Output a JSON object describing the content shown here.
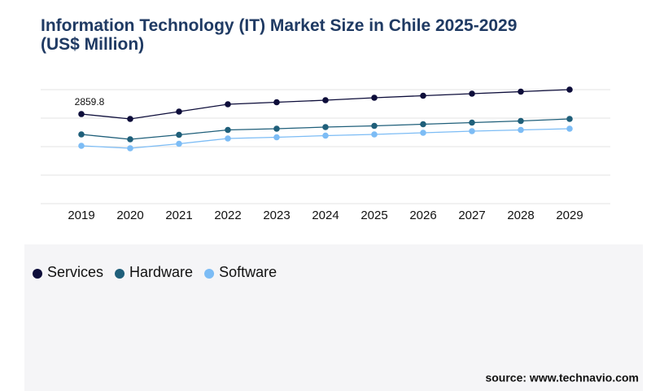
{
  "chart_data": {
    "type": "line",
    "title": "Information Technology (IT) Market Size in Chile 2025-2029 (US$ Million)",
    "categories": [
      "2019",
      "2020",
      "2021",
      "2022",
      "2023",
      "2024",
      "2025",
      "2026",
      "2027",
      "2028",
      "2029"
    ],
    "series": [
      {
        "name": "Services",
        "color": "#0d0d3a",
        "values": [
          2859.8,
          2704,
          2938,
          3172,
          3237,
          3302,
          3380,
          3445,
          3510,
          3575,
          3640
        ]
      },
      {
        "name": "Hardware",
        "color": "#1f5f7a",
        "values": [
          2210,
          2054,
          2197,
          2353,
          2392,
          2444,
          2483,
          2535,
          2587,
          2639,
          2704
        ]
      },
      {
        "name": "Software",
        "color": "#7cbcf5",
        "values": [
          1846,
          1768,
          1911,
          2080,
          2119,
          2171,
          2210,
          2262,
          2314,
          2353,
          2392
        ]
      }
    ],
    "ylim": [
      0,
      3640
    ],
    "yticks": [
      0,
      910,
      1820,
      2730,
      3640
    ],
    "grid": true,
    "source": "source: www.technavio.com"
  }
}
